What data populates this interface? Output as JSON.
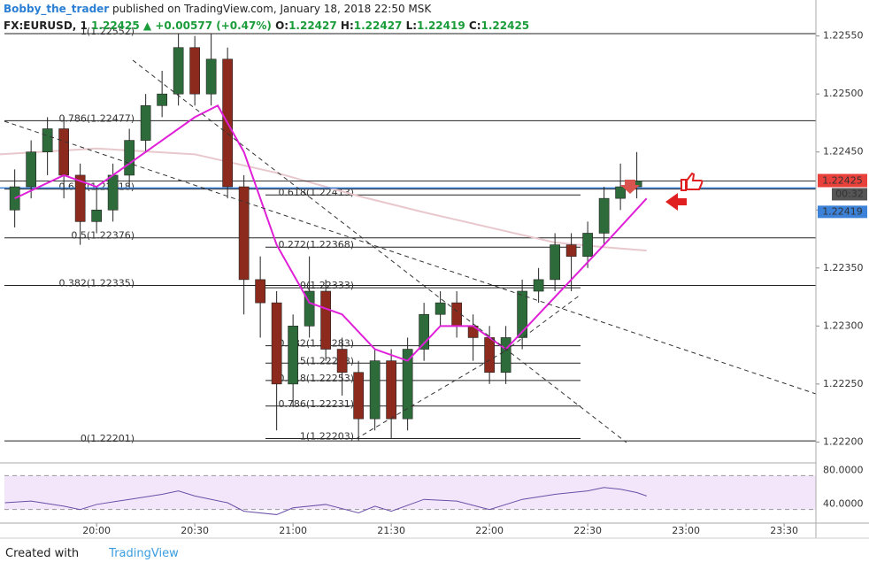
{
  "header": {
    "author": "Bobby_the_trader",
    "published": "published on TradingView.com, January 18, 2018 22:50 MSK",
    "symbol": "FX:EURUSD, 1",
    "last": "1.22425",
    "arrow": "▲",
    "change": "+0.00577 (+0.47%)",
    "o_label": "O:",
    "o": "1.22427",
    "h_label": "H:",
    "h": "1.22427",
    "l_label": "L:",
    "l": "1.22419",
    "c_label": "C:",
    "c": "1.22425"
  },
  "footer": {
    "created": "Created with",
    "brand": "TradingView"
  },
  "chart_data": {
    "type": "candlestick",
    "xlim": [
      1170.5,
      1419.7
    ],
    "ylim": [
      1.22182,
      1.22581
    ],
    "xticks": [
      {
        "value": 1200,
        "label": "20:00"
      },
      {
        "value": 1230,
        "label": "20:30"
      },
      {
        "value": 1260,
        "label": "21:00"
      },
      {
        "value": 1290,
        "label": "21:30"
      },
      {
        "value": 1320,
        "label": "22:00"
      },
      {
        "value": 1350,
        "label": "22:30"
      },
      {
        "value": 1380,
        "label": "23:00"
      },
      {
        "value": 1410,
        "label": "23:30"
      }
    ],
    "yticks": [
      {
        "value": 1.222,
        "label": "1.22200"
      },
      {
        "value": 1.2225,
        "label": "1.22250"
      },
      {
        "value": 1.223,
        "label": "1.22300"
      },
      {
        "value": 1.2235,
        "label": "1.22350"
      },
      {
        "value": 1.224,
        "label": "1.22400"
      },
      {
        "value": 1.2245,
        "label": "1.22450"
      },
      {
        "value": 1.225,
        "label": "1.22500"
      },
      {
        "value": 1.2255,
        "label": "1.22550"
      }
    ],
    "up_color": "#2e6b3a",
    "down_color": "#8c2b1d",
    "x": [
      1175,
      1180,
      1185,
      1190,
      1195,
      1200,
      1205,
      1210,
      1215,
      1220,
      1225,
      1230,
      1235,
      1240,
      1245,
      1250,
      1255,
      1260,
      1265,
      1270,
      1275,
      1280,
      1285,
      1290,
      1295,
      1300,
      1305,
      1310,
      1315,
      1320,
      1325,
      1330,
      1335,
      1340,
      1345,
      1350,
      1355,
      1360,
      1365
    ],
    "open": [
      1.224,
      1.2242,
      1.2245,
      1.2247,
      1.2243,
      1.2239,
      1.224,
      1.2243,
      1.2246,
      1.2249,
      1.225,
      1.2254,
      1.225,
      1.2253,
      1.2242,
      1.2234,
      1.2232,
      1.2225,
      1.223,
      1.2233,
      1.2228,
      1.2226,
      1.2222,
      1.2227,
      1.2222,
      1.2228,
      1.2231,
      1.2232,
      1.223,
      1.2229,
      1.2226,
      1.2229,
      1.2233,
      1.2234,
      1.2237,
      1.2236,
      1.2238,
      1.2241,
      1.2242
    ],
    "high": [
      1.22435,
      1.2246,
      1.2248,
      1.2248,
      1.2244,
      1.2242,
      1.2244,
      1.2247,
      1.225,
      1.2252,
      1.22552,
      1.2255,
      1.22552,
      1.2254,
      1.2243,
      1.2236,
      1.2233,
      1.2231,
      1.2236,
      1.2234,
      1.2229,
      1.2227,
      1.2228,
      1.2228,
      1.2229,
      1.2232,
      1.2233,
      1.2233,
      1.2231,
      1.223,
      1.223,
      1.2234,
      1.2235,
      1.2238,
      1.2238,
      1.2239,
      1.2242,
      1.2244,
      1.2245
    ],
    "low": [
      1.22385,
      1.2241,
      1.2243,
      1.2241,
      1.2237,
      1.2238,
      1.2239,
      1.2242,
      1.2245,
      1.2248,
      1.2249,
      1.2249,
      1.2249,
      1.2241,
      1.2231,
      1.2229,
      1.2221,
      1.2223,
      1.2229,
      1.2227,
      1.2224,
      1.22201,
      1.2221,
      1.22203,
      1.2221,
      1.2227,
      1.223,
      1.2229,
      1.2227,
      1.2225,
      1.2225,
      1.2228,
      1.2232,
      1.2233,
      1.2233,
      1.2235,
      1.2237,
      1.224,
      1.2241
    ],
    "close": [
      1.2242,
      1.2245,
      1.2247,
      1.2243,
      1.2239,
      1.224,
      1.2243,
      1.2246,
      1.2249,
      1.225,
      1.2254,
      1.225,
      1.2253,
      1.2242,
      1.2234,
      1.2232,
      1.2225,
      1.223,
      1.2233,
      1.2228,
      1.2226,
      1.2222,
      1.2227,
      1.2222,
      1.2228,
      1.2231,
      1.2232,
      1.223,
      1.2229,
      1.2226,
      1.2229,
      1.2233,
      1.2234,
      1.2237,
      1.2236,
      1.2238,
      1.2241,
      1.2242,
      1.22425
    ],
    "ma_fast": {
      "color": "#e020d8",
      "x": [
        1175,
        1190,
        1200,
        1215,
        1230,
        1237,
        1245,
        1255,
        1265,
        1275,
        1285,
        1295,
        1305,
        1315,
        1325,
        1335,
        1345,
        1355,
        1368
      ],
      "values": [
        1.2241,
        1.2243,
        1.2242,
        1.2245,
        1.2248,
        1.2249,
        1.2245,
        1.2237,
        1.2232,
        1.2231,
        1.2228,
        1.2227,
        1.223,
        1.223,
        1.2228,
        1.2231,
        1.2234,
        1.2237,
        1.2241
      ]
    },
    "ma_slow": {
      "color": "#e8c8cc",
      "x": [
        1170.5,
        1200,
        1230,
        1255,
        1280,
        1300,
        1320,
        1340,
        1355,
        1368
      ],
      "values": [
        1.22448,
        1.22453,
        1.22448,
        1.22432,
        1.22412,
        1.22398,
        1.22385,
        1.22372,
        1.22368,
        1.22365
      ]
    },
    "fib_sets": [
      [
        {
          "label": "1(1.22552)",
          "price": 1.22552
        },
        {
          "label": "0.786(1.22477)",
          "price": 1.22477
        },
        {
          "label": "0.618(1.22418)",
          "price": 1.22418
        },
        {
          "label": "0.5(1.22376)",
          "price": 1.22376
        },
        {
          "label": "0.382(1.22335)",
          "price": 1.22335
        },
        {
          "label": "0(1.22201)",
          "price": 1.22201
        }
      ],
      [
        {
          "label": "0.618(1.22413)",
          "price": 1.22413
        },
        {
          "label": "0.272(1.22368)",
          "price": 1.22368
        },
        {
          "label": "0(1.22333)",
          "price": 1.22333
        },
        {
          "label": "0.382(1.22283)",
          "price": 1.22283
        },
        {
          "label": "0.5(1.22268)",
          "price": 1.22268
        },
        {
          "label": "0.618(1.22253)",
          "price": 1.22253
        },
        {
          "label": "0.786(1.22231)",
          "price": 1.22231
        },
        {
          "label": "1(1.22203)",
          "price": 1.22203
        }
      ]
    ],
    "last_price": {
      "value": 1.22425,
      "label": "1.22425",
      "color": "#e8403a"
    },
    "countdown": "00:32",
    "bid_price": {
      "value": 1.22419,
      "label": "1.22419",
      "color": "#3b82d8"
    },
    "rsi": {
      "color": "#6a4fa8",
      "band_color": "#f3e6fa",
      "ylim": [
        24,
        94
      ],
      "yticks": [
        {
          "value": 80,
          "label": "80.0000"
        },
        {
          "value": 40,
          "label": "40.0000"
        }
      ],
      "x": [
        1172,
        1180,
        1190,
        1195,
        1200,
        1210,
        1220,
        1225,
        1230,
        1240,
        1245,
        1255,
        1260,
        1270,
        1280,
        1285,
        1290,
        1300,
        1310,
        1320,
        1330,
        1340,
        1350,
        1355,
        1360,
        1365,
        1368
      ],
      "values": [
        48,
        50,
        44,
        40,
        46,
        52,
        58,
        62,
        56,
        48,
        38,
        34,
        42,
        46,
        36,
        44,
        38,
        52,
        50,
        40,
        52,
        58,
        62,
        66,
        64,
        60,
        56
      ]
    }
  }
}
